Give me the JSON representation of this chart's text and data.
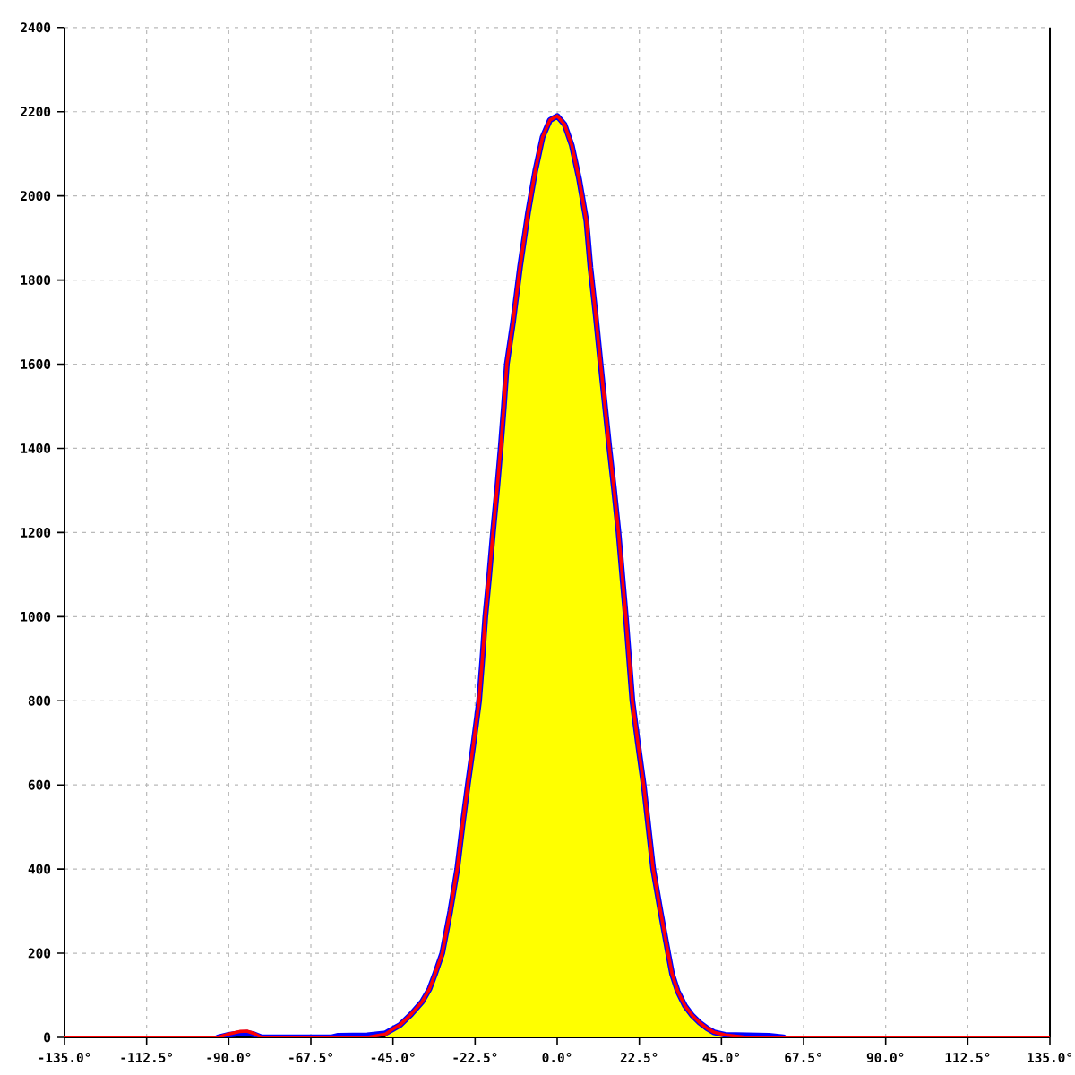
{
  "chart_data": {
    "type": "line",
    "xlim": [
      -135,
      135
    ],
    "ylim": [
      0,
      2400
    ],
    "xticks": [
      {
        "value": -135,
        "label": "-135.0°"
      },
      {
        "value": -112.5,
        "label": "-112.5°"
      },
      {
        "value": -90,
        "label": "-90.0°"
      },
      {
        "value": -67.5,
        "label": "-67.5°"
      },
      {
        "value": -45,
        "label": "-45.0°"
      },
      {
        "value": -22.5,
        "label": "-22.5°"
      },
      {
        "value": 0,
        "label": "0.0°"
      },
      {
        "value": 22.5,
        "label": "22.5°"
      },
      {
        "value": 45,
        "label": "45.0°"
      },
      {
        "value": 67.5,
        "label": "67.5°"
      },
      {
        "value": 90,
        "label": "90.0°"
      },
      {
        "value": 112.5,
        "label": "112.5°"
      },
      {
        "value": 135,
        "label": "135.0°"
      }
    ],
    "yticks": [
      0,
      200,
      400,
      600,
      800,
      1000,
      1200,
      1400,
      1600,
      1800,
      2000,
      2200,
      2400
    ],
    "grid": true,
    "series": [
      {
        "type": "area",
        "color": "#ffff00",
        "x": [
          -47,
          -45,
          -43,
          -40,
          -37,
          -35,
          -33.5,
          -31.5,
          -29.3,
          -27.4,
          -26,
          -24.5,
          -22.9,
          -21.4,
          -20.5,
          -19.7,
          -18.6,
          -17.6,
          -16.5,
          -15.5,
          -14.6,
          -13.8,
          -12.1,
          -10.2,
          -8,
          -6,
          -4,
          -2,
          0,
          2,
          4,
          6,
          8,
          9.1,
          10.5,
          11.9,
          13.1,
          14.3,
          15.6,
          16.8,
          17.8,
          18.8,
          19.7,
          20.6,
          22.1,
          23.7,
          25,
          26.3,
          28.3,
          30.4,
          31.5,
          33,
          35,
          37,
          39,
          41,
          43,
          46
        ],
        "values": [
          10,
          20,
          30,
          55,
          85,
          115,
          150,
          200,
          300,
          400,
          500,
          600,
          700,
          800,
          900,
          1000,
          1100,
          1200,
          1300,
          1400,
          1500,
          1600,
          1700,
          1830,
          1960,
          2060,
          2140,
          2180,
          2190,
          2170,
          2120,
          2040,
          1940,
          1830,
          1720,
          1600,
          1500,
          1400,
          1300,
          1200,
          1100,
          1000,
          900,
          800,
          700,
          600,
          500,
          400,
          300,
          200,
          150,
          110,
          75,
          52,
          35,
          22,
          12,
          6
        ]
      },
      {
        "color": "#0000ff",
        "x": [
          -93,
          -90,
          -87,
          -85,
          -83,
          -81,
          -62,
          -60,
          -52,
          -47,
          -45,
          -43,
          -40,
          -37,
          -35,
          -33.5,
          -31.5,
          -29.3,
          -27.4,
          -26,
          -24.5,
          -22.9,
          -21.4,
          -20.5,
          -19.7,
          -18.6,
          -17.6,
          -16.5,
          -15.5,
          -14.6,
          -13.8,
          -12.1,
          -10.2,
          -8,
          -6,
          -4,
          -2,
          0,
          2,
          4,
          6,
          8,
          9.1,
          10.5,
          11.9,
          13.1,
          14.3,
          15.6,
          16.8,
          17.8,
          18.8,
          19.7,
          20.6,
          22.1,
          23.7,
          25,
          26.3,
          28.3,
          30.4,
          31.5,
          33,
          35,
          37,
          39,
          41,
          43,
          46,
          52,
          58,
          62
        ],
        "values": [
          0,
          6,
          10,
          11,
          7,
          0,
          0,
          4,
          5,
          10,
          20,
          30,
          55,
          85,
          115,
          150,
          200,
          300,
          400,
          500,
          600,
          700,
          800,
          900,
          1000,
          1100,
          1200,
          1300,
          1400,
          1500,
          1600,
          1700,
          1830,
          1960,
          2060,
          2140,
          2180,
          2190,
          2170,
          2120,
          2040,
          1940,
          1830,
          1720,
          1600,
          1500,
          1400,
          1300,
          1200,
          1100,
          1000,
          900,
          800,
          700,
          600,
          500,
          400,
          300,
          200,
          150,
          110,
          75,
          52,
          35,
          22,
          12,
          6,
          5,
          4,
          0
        ]
      },
      {
        "color": "#ff0000",
        "x": [
          -135,
          -93,
          -90,
          -87,
          -85,
          -83,
          -81,
          -62,
          -60,
          -52,
          -47,
          -45,
          -43,
          -40,
          -37,
          -35,
          -33.5,
          -31.5,
          -29.3,
          -27.4,
          -26,
          -24.5,
          -22.9,
          -21.4,
          -20.5,
          -19.7,
          -18.6,
          -17.6,
          -16.5,
          -15.5,
          -14.6,
          -13.8,
          -12.1,
          -10.2,
          -8,
          -6,
          -4,
          -2,
          0,
          2,
          4,
          6,
          8,
          9.1,
          10.5,
          11.9,
          13.1,
          14.3,
          15.6,
          16.8,
          17.8,
          18.8,
          19.7,
          20.6,
          22.1,
          23.7,
          25,
          26.3,
          28.3,
          30.4,
          31.5,
          33,
          35,
          37,
          39,
          41,
          43,
          46,
          52,
          58,
          62,
          135
        ],
        "values": [
          0,
          0,
          8,
          14,
          15,
          9,
          0,
          0,
          0,
          0,
          8,
          20,
          30,
          55,
          85,
          115,
          150,
          200,
          300,
          400,
          500,
          600,
          700,
          800,
          900,
          1000,
          1100,
          1200,
          1300,
          1400,
          1500,
          1600,
          1700,
          1830,
          1960,
          2060,
          2140,
          2180,
          2190,
          2170,
          2120,
          2040,
          1940,
          1830,
          1720,
          1600,
          1500,
          1400,
          1300,
          1200,
          1100,
          1000,
          900,
          800,
          700,
          600,
          500,
          400,
          300,
          200,
          150,
          110,
          75,
          52,
          35,
          22,
          12,
          6,
          0,
          0,
          0,
          0
        ]
      }
    ]
  }
}
